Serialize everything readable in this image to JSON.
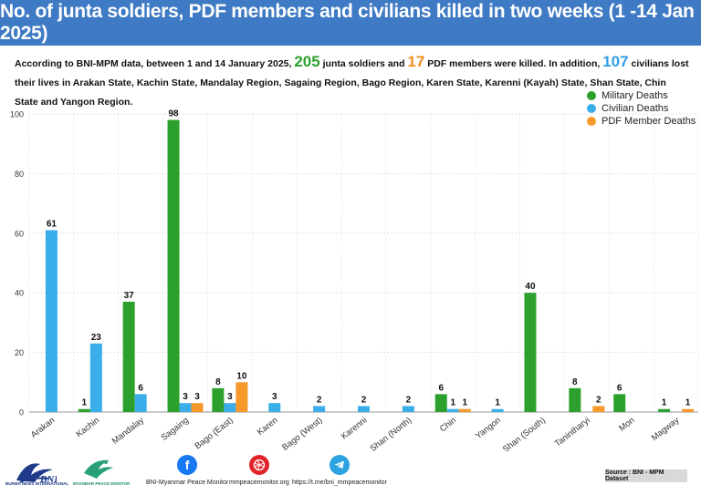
{
  "banner": {
    "title": "No. of junta soldiers, PDF members and civilians killed in two weeks   (1 -14 Jan 2025)"
  },
  "intro": {
    "part1": "According to BNI-MPM data, between 1 and 14 January 2025, ",
    "soldiers": "205",
    "part2": " junta soldiers and ",
    "pdf": "17",
    "part3": " PDF members were killed. In addition, ",
    "civilians": "107",
    "part4": " civilians lost their lives in Arakan State, Kachin State, Mandalay Region, Sagaing Region, Bago Region, Karen State, Karenni (Kayah) State, Shan State, Chin State and Yangon Region."
  },
  "colors": {
    "military": "#2ca02c",
    "civilian": "#3aaee8",
    "pdf": "#f7982a"
  },
  "chart_data": {
    "type": "bar",
    "categories": [
      "Arakan",
      "Kachin",
      "Mandalay",
      "Sagaing",
      "Bago (East)",
      "Karen",
      "Bago (West)",
      "Karenni",
      "Shan (North)",
      "Chin",
      "Yangon",
      "Shan (South)",
      "Tanintharyi",
      "Mon",
      "Magway"
    ],
    "series": [
      {
        "name": "Military Deaths",
        "key": "military",
        "values": [
          0,
          1,
          37,
          98,
          8,
          0,
          0,
          0,
          0,
          6,
          0,
          40,
          8,
          6,
          1
        ]
      },
      {
        "name": "Civilian Deaths",
        "key": "civilian",
        "values": [
          61,
          23,
          6,
          3,
          3,
          3,
          2,
          2,
          2,
          1,
          1,
          0,
          0,
          0,
          0
        ]
      },
      {
        "name": "PDF Member Deaths",
        "key": "pdf",
        "values": [
          0,
          0,
          0,
          3,
          10,
          0,
          0,
          0,
          0,
          1,
          0,
          0,
          2,
          0,
          1
        ]
      }
    ],
    "yticks": [
      0,
      20,
      40,
      60,
      80,
      100
    ],
    "ylim": [
      0,
      100
    ],
    "legend_position": "top-right",
    "grid": true
  },
  "footer": {
    "bni_text": "BURMA NEWS INTERNATIONAL",
    "mpm_text": "MYANMAR PEACE MONITOR",
    "facebook_label": "BNI-Myanmar Peace Monitor",
    "website_label": "mmpeacemonitor.org",
    "telegram_label": "https://t.me/bni_mmpeacemonitor",
    "source": "Source : BNI - MPM Dataset"
  }
}
